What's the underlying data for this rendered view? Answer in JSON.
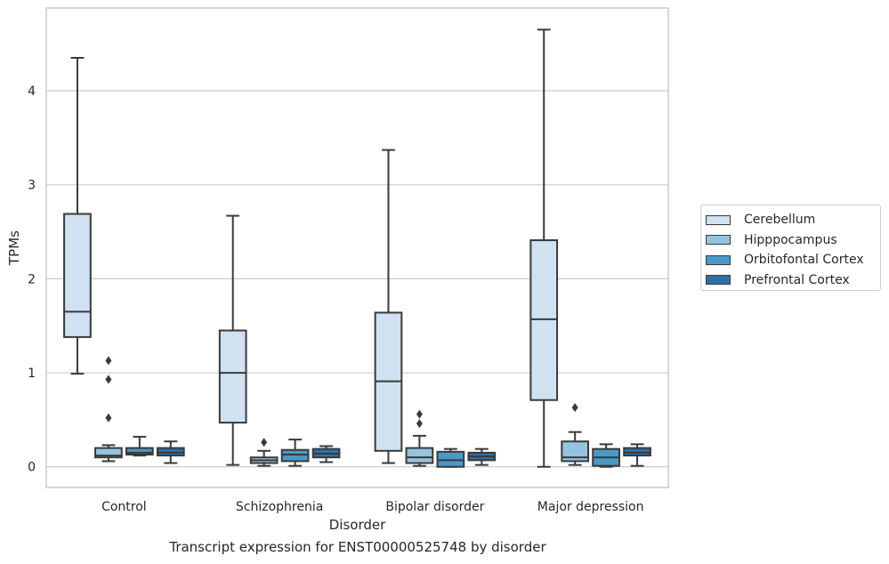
{
  "chart_data": {
    "type": "box",
    "xlabel": "Disorder",
    "ylabel": "TPMs",
    "caption": "Transcript expression for ENST00000525748 by disorder",
    "ylim": [
      -0.22,
      4.88
    ],
    "yticks": [
      "0",
      "1",
      "2",
      "3",
      "4"
    ],
    "grid": "horizontal",
    "legend_position": "right",
    "categories": [
      "Control",
      "Schizophrenia",
      "Bipolar disorder",
      "Major depression"
    ],
    "series": [
      {
        "name": "Cerebellum",
        "color": "#d0e1f2",
        "boxes": [
          {
            "whislo": 0.99,
            "q1": 1.38,
            "med": 1.65,
            "q3": 2.69,
            "whishi": 4.35,
            "fliers": []
          },
          {
            "whislo": 0.02,
            "q1": 0.47,
            "med": 1.0,
            "q3": 1.45,
            "whishi": 2.67,
            "fliers": []
          },
          {
            "whislo": 0.04,
            "q1": 0.17,
            "med": 0.91,
            "q3": 1.64,
            "whishi": 3.37,
            "fliers": []
          },
          {
            "whislo": 0.0,
            "q1": 0.71,
            "med": 1.57,
            "q3": 2.41,
            "whishi": 4.65,
            "fliers": []
          }
        ]
      },
      {
        "name": "Hipppocampus",
        "color": "#94c4df",
        "boxes": [
          {
            "whislo": 0.06,
            "q1": 0.1,
            "med": 0.12,
            "q3": 0.2,
            "whishi": 0.23,
            "fliers": [
              0.52,
              0.93,
              1.13
            ]
          },
          {
            "whislo": 0.01,
            "q1": 0.04,
            "med": 0.07,
            "q3": 0.1,
            "whishi": 0.17,
            "fliers": [
              0.26
            ]
          },
          {
            "whislo": 0.01,
            "q1": 0.04,
            "med": 0.1,
            "q3": 0.2,
            "whishi": 0.33,
            "fliers": [
              0.46,
              0.56
            ]
          },
          {
            "whislo": 0.02,
            "q1": 0.06,
            "med": 0.1,
            "q3": 0.27,
            "whishi": 0.37,
            "fliers": [
              0.63
            ]
          }
        ]
      },
      {
        "name": "Orbitofontal Cortex",
        "color": "#4a98c9",
        "boxes": [
          {
            "whislo": 0.12,
            "q1": 0.13,
            "med": 0.15,
            "q3": 0.2,
            "whishi": 0.32,
            "fliers": []
          },
          {
            "whislo": 0.01,
            "q1": 0.06,
            "med": 0.13,
            "q3": 0.18,
            "whishi": 0.29,
            "fliers": []
          },
          {
            "whislo": 0.0,
            "q1": 0.0,
            "med": 0.07,
            "q3": 0.16,
            "whishi": 0.19,
            "fliers": []
          },
          {
            "whislo": 0.0,
            "q1": 0.01,
            "med": 0.1,
            "q3": 0.19,
            "whishi": 0.24,
            "fliers": []
          }
        ]
      },
      {
        "name": "Prefrontal Cortex",
        "color": "#2e6fa8",
        "boxes": [
          {
            "whislo": 0.04,
            "q1": 0.12,
            "med": 0.15,
            "q3": 0.2,
            "whishi": 0.27,
            "fliers": []
          },
          {
            "whislo": 0.05,
            "q1": 0.1,
            "med": 0.14,
            "q3": 0.19,
            "whishi": 0.22,
            "fliers": []
          },
          {
            "whislo": 0.02,
            "q1": 0.07,
            "med": 0.11,
            "q3": 0.15,
            "whishi": 0.19,
            "fliers": []
          },
          {
            "whislo": 0.01,
            "q1": 0.12,
            "med": 0.15,
            "q3": 0.2,
            "whishi": 0.24,
            "fliers": []
          }
        ]
      }
    ]
  }
}
